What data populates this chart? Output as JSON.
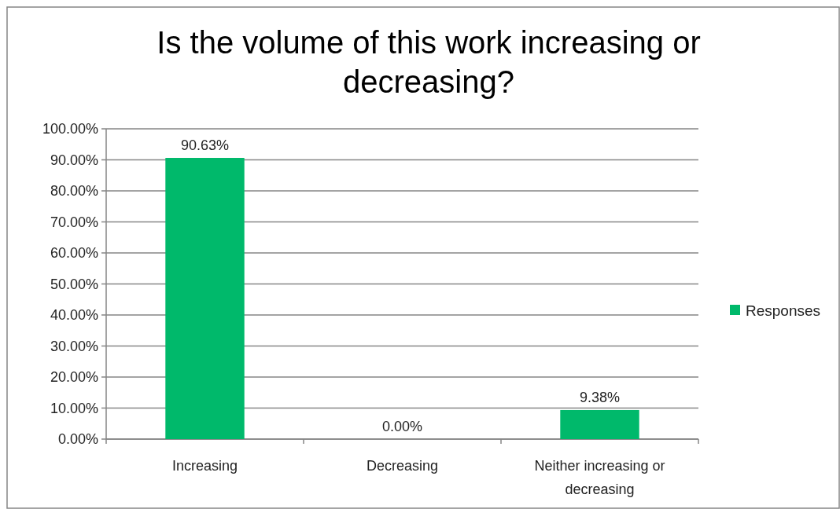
{
  "chart_data": {
    "type": "bar",
    "title": "Is the volume of this work increasing or decreasing?",
    "categories": [
      "Increasing",
      "Decreasing",
      "Neither increasing or decreasing"
    ],
    "series": [
      {
        "name": "Responses",
        "color": "#00b96b",
        "values": [
          90.63,
          0,
          9.38
        ],
        "value_labels": [
          "90.63%",
          "0.00%",
          "9.38%"
        ]
      }
    ],
    "ylim": [
      0,
      100
    ],
    "yticks": [
      {
        "value": 0,
        "label": "0.00%"
      },
      {
        "value": 10,
        "label": "10.00%"
      },
      {
        "value": 20,
        "label": "20.00%"
      },
      {
        "value": 30,
        "label": "30.00%"
      },
      {
        "value": 40,
        "label": "40.00%"
      },
      {
        "value": 50,
        "label": "50.00%"
      },
      {
        "value": 60,
        "label": "60.00%"
      },
      {
        "value": 70,
        "label": "70.00%"
      },
      {
        "value": 80,
        "label": "80.00%"
      },
      {
        "value": 90,
        "label": "90.00%"
      },
      {
        "value": 100,
        "label": "100.00%"
      }
    ],
    "grid": "y",
    "legend": "right"
  }
}
